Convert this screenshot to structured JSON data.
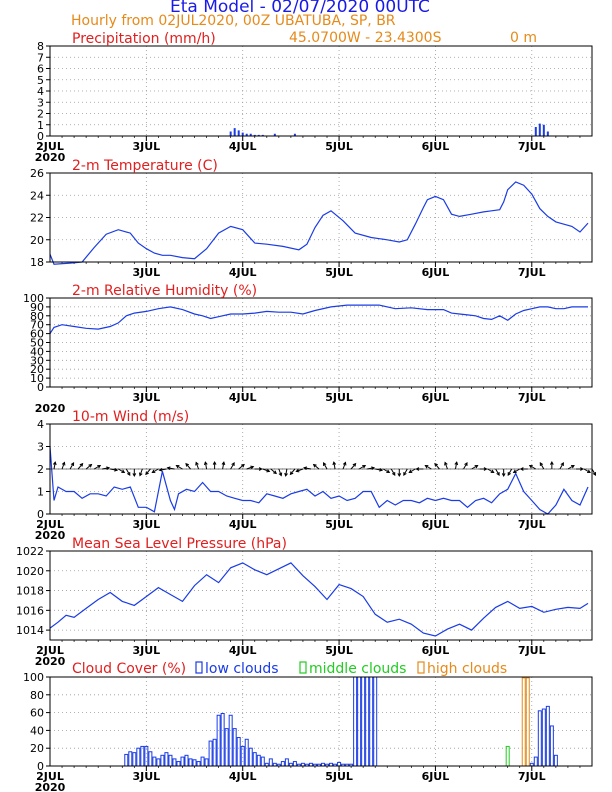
{
  "header": {
    "title": "Eta Model - 02/07/2020 00UTC",
    "subtitle": "Hourly from 02JUL2020, 00Z  UBATUBA, SP, BR",
    "coords": "45.0700W - 23.4300S",
    "elevation": "0  m"
  },
  "colors": {
    "title": "#1a1ae6",
    "orange": "#e68a1a",
    "red": "#e02020",
    "blue": "#1a3ce6",
    "green": "#22cc22",
    "black": "#000000",
    "grid": "#999999"
  },
  "day_labels": [
    "2JUL",
    "3JUL",
    "4JUL",
    "5JUL",
    "6JUL",
    "7JUL"
  ],
  "year_label": "2020",
  "chart_data": [
    {
      "id": "precip",
      "type": "bar",
      "title": "Precipitation (mm/h)",
      "ylim": [
        0,
        8
      ],
      "yticks": [
        0,
        1,
        2,
        3,
        4,
        5,
        6,
        7,
        8
      ],
      "x_hours": [
        45,
        46,
        47,
        48,
        49,
        50,
        51,
        52,
        53,
        56,
        61,
        121,
        122,
        123,
        124
      ],
      "values": [
        0.4,
        0.7,
        0.5,
        0.3,
        0.2,
        0.2,
        0.1,
        0.1,
        0.1,
        0.2,
        0.2,
        0.8,
        1.1,
        1.0,
        0.4
      ],
      "xlabels": [
        "2JUL",
        "3JUL",
        "4JUL",
        "5JUL",
        "6JUL",
        "7JUL"
      ],
      "year": "2020"
    },
    {
      "id": "temp",
      "type": "line",
      "title": "2-m Temperature (C)",
      "ylim": [
        18,
        26
      ],
      "yticks": [
        18,
        20,
        22,
        24,
        26
      ],
      "x": [
        0,
        1,
        5,
        8,
        11,
        14,
        17,
        20,
        22,
        24,
        26,
        28,
        30,
        33,
        36,
        39,
        42,
        45,
        48,
        51,
        54,
        58,
        62,
        64,
        66,
        68,
        70,
        73,
        76,
        80,
        84,
        87,
        89,
        91,
        93,
        94,
        96,
        98,
        100,
        102,
        105,
        108,
        110,
        112,
        113,
        114,
        116,
        118,
        120,
        122,
        124,
        126,
        128,
        130,
        132,
        134
      ],
      "values": [
        18.7,
        17.8,
        17.9,
        18.0,
        19.3,
        20.5,
        20.9,
        20.6,
        19.7,
        19.2,
        18.8,
        18.6,
        18.6,
        18.4,
        18.3,
        19.2,
        20.6,
        21.2,
        20.9,
        19.7,
        19.6,
        19.4,
        19.1,
        19.6,
        21.1,
        22.2,
        22.6,
        21.7,
        20.6,
        20.2,
        20.0,
        19.8,
        20.0,
        21.4,
        22.9,
        23.6,
        23.9,
        23.6,
        22.3,
        22.1,
        22.3,
        22.5,
        22.6,
        22.7,
        23.4,
        24.5,
        25.2,
        24.9,
        24.1,
        22.8,
        22.1,
        21.6,
        21.4,
        21.2,
        20.7,
        21.5
      ],
      "xlabels": [
        "3JUL",
        "4JUL",
        "5JUL",
        "6JUL",
        "7JUL"
      ]
    },
    {
      "id": "rh",
      "type": "line",
      "title": "2-m Relative Humidity (%)",
      "ylim": [
        0,
        100
      ],
      "yticks": [
        0,
        10,
        20,
        30,
        40,
        50,
        60,
        70,
        80,
        90,
        100
      ],
      "x": [
        0,
        1,
        3,
        6,
        9,
        12,
        15,
        17,
        19,
        21,
        24,
        27,
        30,
        33,
        36,
        38,
        40,
        42,
        45,
        48,
        51,
        54,
        57,
        60,
        63,
        66,
        70,
        74,
        78,
        82,
        86,
        90,
        94,
        98,
        100,
        102,
        104,
        106,
        108,
        110,
        112,
        114,
        116,
        118,
        120,
        122,
        124,
        126,
        128,
        130,
        132,
        134
      ],
      "values": [
        60,
        67,
        70,
        68,
        66,
        65,
        68,
        72,
        80,
        83,
        85,
        88,
        90,
        87,
        82,
        80,
        77,
        79,
        82,
        82,
        83,
        85,
        84,
        84,
        82,
        86,
        90,
        92,
        92,
        92,
        88,
        89,
        87,
        87,
        83,
        82,
        81,
        80,
        77,
        76,
        80,
        75,
        82,
        86,
        88,
        90,
        90,
        88,
        88,
        90,
        90,
        90
      ],
      "xlabels": [
        "3JUL",
        "4JUL",
        "5JUL",
        "6JUL",
        "7JUL"
      ],
      "year": "2020"
    },
    {
      "id": "wind",
      "type": "line",
      "title": "10-m Wind (m/s)",
      "ylim": [
        0,
        4
      ],
      "yticks": [
        0,
        1,
        2,
        3,
        4
      ],
      "x": [
        0,
        1,
        2,
        4,
        6,
        8,
        10,
        12,
        14,
        16,
        18,
        20,
        22,
        24,
        26,
        28,
        30,
        31,
        32,
        34,
        36,
        38,
        40,
        42,
        44,
        46,
        48,
        50,
        52,
        54,
        56,
        58,
        60,
        62,
        64,
        66,
        68,
        70,
        72,
        74,
        76,
        78,
        80,
        82,
        84,
        86,
        88,
        90,
        92,
        94,
        96,
        98,
        100,
        102,
        104,
        106,
        108,
        110,
        112,
        114,
        116,
        118,
        120,
        122,
        124,
        126,
        128,
        130,
        132,
        134
      ],
      "values": [
        3.0,
        0.6,
        1.2,
        1.0,
        1.0,
        0.7,
        0.9,
        0.9,
        0.8,
        1.2,
        1.1,
        1.2,
        0.3,
        0.3,
        0.1,
        1.9,
        0.6,
        0.2,
        0.9,
        1.1,
        1.0,
        1.4,
        1.0,
        1.0,
        0.8,
        0.7,
        0.6,
        0.6,
        0.5,
        0.9,
        0.8,
        0.7,
        0.9,
        1.0,
        1.1,
        0.8,
        1.0,
        0.7,
        0.8,
        0.6,
        0.7,
        1.0,
        1.0,
        0.3,
        0.6,
        0.4,
        0.6,
        0.6,
        0.5,
        0.7,
        0.6,
        0.7,
        0.6,
        0.6,
        0.3,
        0.6,
        0.7,
        0.5,
        0.9,
        1.1,
        1.8,
        1.0,
        0.6,
        0.2,
        0.0,
        0.4,
        1.1,
        0.6,
        0.4,
        1.2
      ],
      "arrow_y": 2.0,
      "arrow_dirs_deg": [
        10,
        20,
        30,
        40,
        50,
        60,
        80,
        100,
        120,
        150,
        180,
        200,
        220,
        240,
        260,
        280,
        300,
        320,
        340,
        350,
        0,
        10,
        30,
        50,
        70,
        90,
        110,
        130,
        160,
        190,
        220,
        250,
        280,
        310,
        330,
        350,
        20,
        40,
        60,
        80,
        100,
        120,
        150,
        180,
        210,
        240,
        270,
        300,
        320,
        340,
        10,
        30,
        60,
        90,
        120,
        150,
        180,
        210,
        240,
        270,
        300,
        330,
        0,
        30,
        60,
        90,
        120,
        150
      ],
      "xlabels": [
        "2JUL",
        "3JUL",
        "4JUL",
        "5JUL",
        "6JUL",
        "7JUL"
      ],
      "year": "2020"
    },
    {
      "id": "mslp",
      "type": "line",
      "title": "Mean Sea Level Pressure (hPa)",
      "ylim": [
        1013,
        1022
      ],
      "yticks": [
        1014,
        1016,
        1018,
        1020,
        1022
      ],
      "x": [
        0,
        2,
        4,
        6,
        9,
        12,
        15,
        18,
        21,
        24,
        27,
        30,
        33,
        36,
        39,
        42,
        45,
        48,
        51,
        54,
        57,
        60,
        63,
        66,
        69,
        72,
        75,
        78,
        81,
        84,
        87,
        90,
        93,
        96,
        99,
        102,
        105,
        108,
        111,
        114,
        117,
        120,
        123,
        126,
        129,
        132,
        134
      ],
      "values": [
        1014.2,
        1014.8,
        1015.5,
        1015.3,
        1016.2,
        1017.1,
        1017.8,
        1016.9,
        1016.5,
        1017.4,
        1018.3,
        1017.6,
        1016.9,
        1018.5,
        1019.6,
        1018.8,
        1020.3,
        1020.8,
        1020.1,
        1019.6,
        1020.2,
        1020.8,
        1019.5,
        1018.4,
        1017.1,
        1018.6,
        1018.2,
        1017.4,
        1015.6,
        1014.8,
        1015.1,
        1014.6,
        1013.7,
        1013.4,
        1014.1,
        1014.6,
        1014.0,
        1015.2,
        1016.3,
        1016.9,
        1016.2,
        1016.4,
        1015.8,
        1016.1,
        1016.3,
        1016.2,
        1016.7
      ],
      "xlabels": [
        "2JUL",
        "3JUL",
        "4JUL",
        "5JUL",
        "6JUL",
        "7JUL"
      ],
      "year": "2020"
    },
    {
      "id": "clouds",
      "type": "bar",
      "title": "Cloud Cover (%)",
      "legend": [
        "low clouds",
        "middle clouds",
        "high clouds"
      ],
      "ylim": [
        0,
        100
      ],
      "yticks": [
        0,
        20,
        40,
        60,
        80,
        100
      ],
      "low": [
        [
          19,
          13
        ],
        [
          20,
          16
        ],
        [
          21,
          15
        ],
        [
          22,
          20
        ],
        [
          23,
          22
        ],
        [
          24,
          22
        ],
        [
          25,
          16
        ],
        [
          26,
          10
        ],
        [
          27,
          8
        ],
        [
          28,
          12
        ],
        [
          29,
          15
        ],
        [
          30,
          12
        ],
        [
          31,
          8
        ],
        [
          32,
          5
        ],
        [
          33,
          10
        ],
        [
          34,
          12
        ],
        [
          35,
          8
        ],
        [
          36,
          7
        ],
        [
          37,
          5
        ],
        [
          38,
          10
        ],
        [
          39,
          8
        ],
        [
          40,
          28
        ],
        [
          41,
          30
        ],
        [
          42,
          57
        ],
        [
          43,
          59
        ],
        [
          44,
          42
        ],
        [
          45,
          57
        ],
        [
          46,
          42
        ],
        [
          47,
          32
        ],
        [
          48,
          22
        ],
        [
          49,
          30
        ],
        [
          50,
          20
        ],
        [
          51,
          15
        ],
        [
          52,
          12
        ],
        [
          53,
          10
        ],
        [
          54,
          3
        ],
        [
          55,
          8
        ],
        [
          56,
          3
        ],
        [
          57,
          2
        ],
        [
          58,
          5
        ],
        [
          59,
          8
        ],
        [
          60,
          3
        ],
        [
          61,
          5
        ],
        [
          62,
          2
        ],
        [
          63,
          3
        ],
        [
          64,
          2
        ],
        [
          65,
          3
        ],
        [
          66,
          2
        ],
        [
          67,
          2
        ],
        [
          68,
          3
        ],
        [
          69,
          2
        ],
        [
          70,
          3
        ],
        [
          71,
          2
        ],
        [
          72,
          4
        ],
        [
          73,
          2
        ],
        [
          74,
          2
        ],
        [
          75,
          2
        ],
        [
          76,
          100
        ],
        [
          77,
          100
        ],
        [
          78,
          100
        ],
        [
          79,
          100
        ],
        [
          80,
          100
        ],
        [
          81,
          100
        ],
        [
          120,
          3
        ],
        [
          121,
          10
        ],
        [
          122,
          62
        ],
        [
          123,
          64
        ],
        [
          124,
          67
        ],
        [
          125,
          45
        ],
        [
          126,
          12
        ]
      ],
      "mid": [
        [
          114,
          22
        ]
      ],
      "high": [
        [
          118,
          99
        ],
        [
          119,
          99
        ]
      ],
      "xlabels": [
        "2JUL",
        "3JUL",
        "4JUL",
        "5JUL",
        "6JUL",
        "7JUL"
      ],
      "year": "2020"
    }
  ]
}
